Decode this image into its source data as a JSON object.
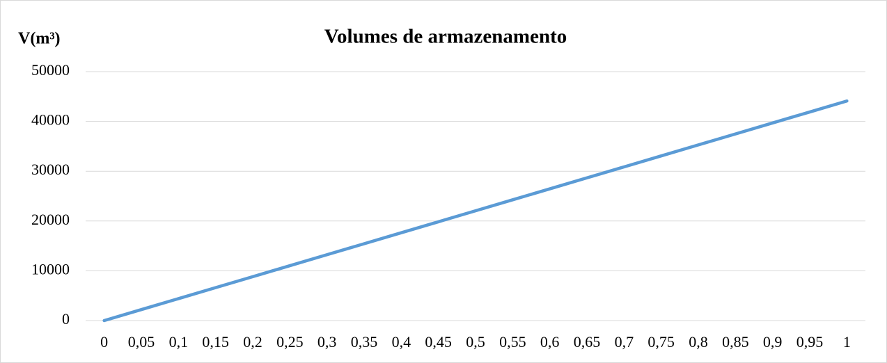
{
  "chart_data": {
    "type": "line",
    "title": "Volumes de armazenamento",
    "y_label": "V(m³)",
    "categories": [
      "0",
      "0,05",
      "0,1",
      "0,15",
      "0,2",
      "0,25",
      "0,3",
      "0,35",
      "0,4",
      "0,45",
      "0,5",
      "0,55",
      "0,6",
      "0,65",
      "0,7",
      "0,75",
      "0,8",
      "0,85",
      "0,9",
      "0,95",
      "1"
    ],
    "series": [
      {
        "name": "V",
        "color": "#5b9bd5",
        "values": [
          0,
          2205,
          4410,
          6615,
          8820,
          11025,
          13230,
          15435,
          17640,
          19845,
          22050,
          24255,
          26460,
          28665,
          30870,
          33075,
          35280,
          37485,
          39690,
          41895,
          44100
        ]
      }
    ],
    "ylim": [
      0,
      50000
    ],
    "yticks": [
      0,
      10000,
      20000,
      30000,
      40000,
      50000
    ],
    "grid": true
  }
}
